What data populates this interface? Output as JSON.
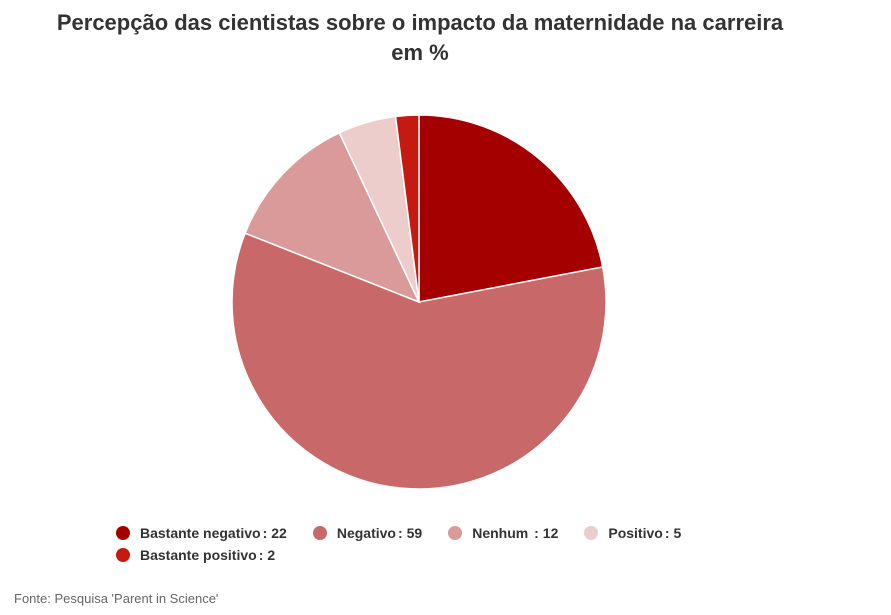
{
  "chart_data": {
    "type": "pie",
    "title_lines": [
      "Percepção das cientistas sobre o impacto da maternidade na carreira",
      "em %"
    ],
    "slices": [
      {
        "label": "Bastante negativo",
        "value": 22,
        "color": "#a50000"
      },
      {
        "label": "Negativo",
        "value": 59,
        "color": "#c96868"
      },
      {
        "label": "Nenhum ",
        "value": 12,
        "color": "#da9a9a"
      },
      {
        "label": "Positivo",
        "value": 5,
        "color": "#edcccc"
      },
      {
        "label": "Bastante positivo",
        "value": 2,
        "color": "#c41a12"
      }
    ],
    "legend_position": "bottom",
    "start_angle_deg": 0,
    "direction": "clockwise"
  },
  "source": "Fonte: Pesquisa 'Parent in Science'"
}
